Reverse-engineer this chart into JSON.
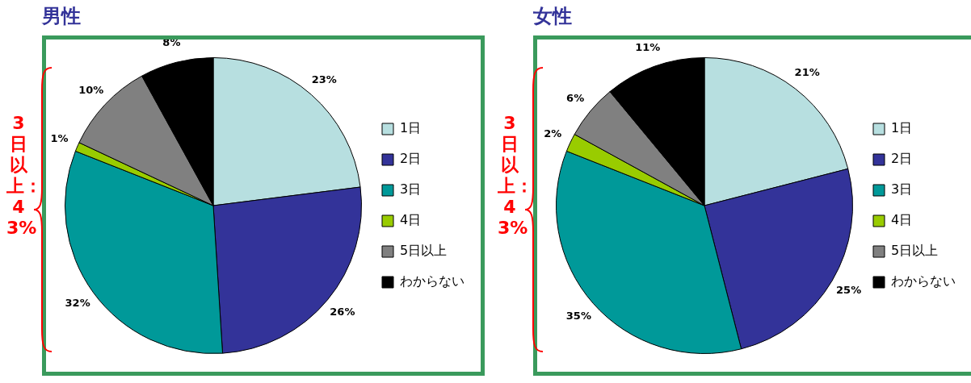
{
  "chart_data": [
    {
      "type": "pie",
      "title": "男性",
      "categories": [
        "1日",
        "2日",
        "3日",
        "4日",
        "5日以上",
        "わからない"
      ],
      "values": [
        23,
        26,
        32,
        1,
        10,
        8
      ],
      "value_labels": [
        "23%",
        "26%",
        "32%",
        "1%",
        "10%",
        "8%"
      ],
      "colors": [
        "#b7dfe0",
        "#333399",
        "#009999",
        "#99cc00",
        "#808080",
        "#000000"
      ],
      "legend": "right",
      "annotations": [
        "3日以上：43%"
      ]
    },
    {
      "type": "pie",
      "title": "女性",
      "categories": [
        "1日",
        "2日",
        "3日",
        "4日",
        "5日以上",
        "わからない"
      ],
      "values": [
        21,
        25,
        35,
        2,
        6,
        11
      ],
      "value_labels": [
        "21%",
        "25%",
        "35%",
        "2%",
        "6%",
        "11%"
      ],
      "colors": [
        "#b7dfe0",
        "#333399",
        "#009999",
        "#99cc00",
        "#808080",
        "#000000"
      ],
      "legend": "right",
      "annotations": [
        "3日以上：43%"
      ]
    }
  ]
}
